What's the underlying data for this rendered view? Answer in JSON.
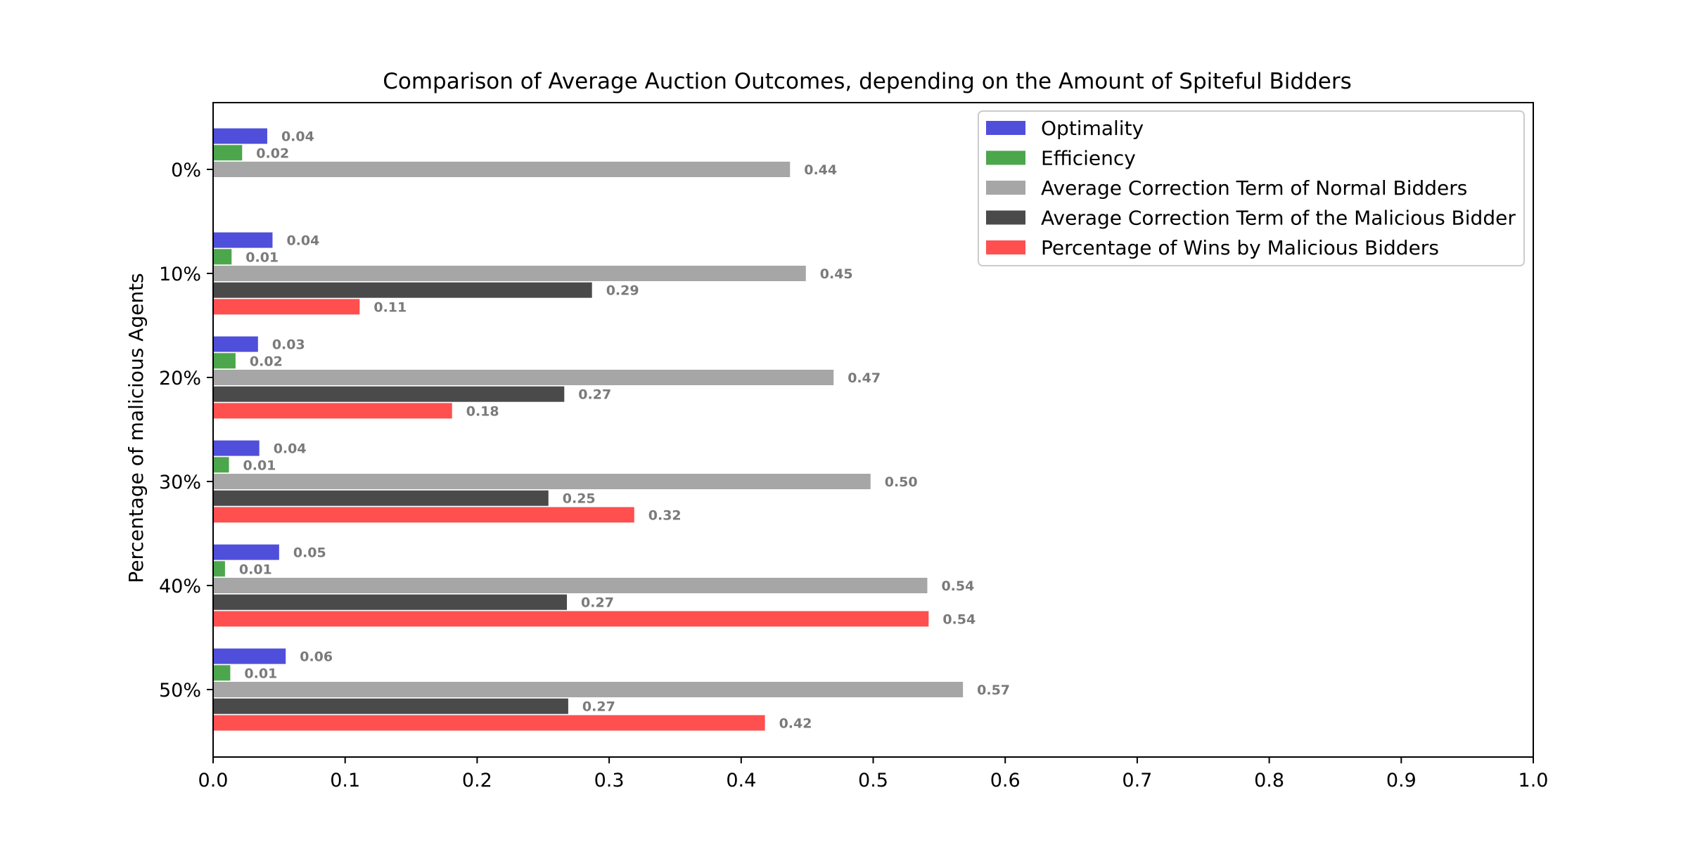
{
  "chart_data": {
    "type": "bar",
    "orientation": "horizontal",
    "title": "Comparison of Average Auction Outcomes, depending on the Amount of Spiteful Bidders",
    "xlabel": "",
    "ylabel": "Percentage of malicious Agents",
    "xlim": [
      0,
      1.0
    ],
    "x_ticks": [
      "0.0",
      "0.1",
      "0.2",
      "0.3",
      "0.4",
      "0.5",
      "0.6",
      "0.7",
      "0.8",
      "0.9",
      "1.0"
    ],
    "categories": [
      "0%",
      "10%",
      "20%",
      "30%",
      "40%",
      "50%"
    ],
    "grid": false,
    "legend_position": "top-right",
    "series": [
      {
        "name": "Optimality",
        "color": "#4f4fdb",
        "values": [
          0.041,
          0.045,
          0.034,
          0.035,
          0.05,
          0.055
        ],
        "labels": [
          "0.04",
          "0.04",
          "0.03",
          "0.04",
          "0.05",
          "0.06"
        ]
      },
      {
        "name": "Efficiency",
        "color": "#4ca64c",
        "values": [
          0.022,
          0.014,
          0.017,
          0.012,
          0.009,
          0.013
        ],
        "labels": [
          "0.02",
          "0.01",
          "0.02",
          "0.01",
          "0.01",
          "0.01"
        ]
      },
      {
        "name": "Average Correction Term of Normal Bidders",
        "color": "#a6a6a6",
        "values": [
          0.437,
          0.449,
          0.47,
          0.498,
          0.541,
          0.568
        ],
        "labels": [
          "0.44",
          "0.45",
          "0.47",
          "0.50",
          "0.54",
          "0.57"
        ]
      },
      {
        "name": "Average Correction Term of the Malicious Bidder",
        "color": "#4a4a4a",
        "values": [
          null,
          0.287,
          0.266,
          0.254,
          0.268,
          0.269
        ],
        "labels": [
          "",
          "0.29",
          "0.27",
          "0.25",
          "0.27",
          "0.27"
        ]
      },
      {
        "name": "Percentage of Wins by Malicious Bidders",
        "color": "#ff4f4f",
        "values": [
          null,
          0.111,
          0.181,
          0.319,
          0.542,
          0.418
        ],
        "labels": [
          "",
          "0.11",
          "0.18",
          "0.32",
          "0.54",
          "0.42"
        ]
      }
    ]
  }
}
